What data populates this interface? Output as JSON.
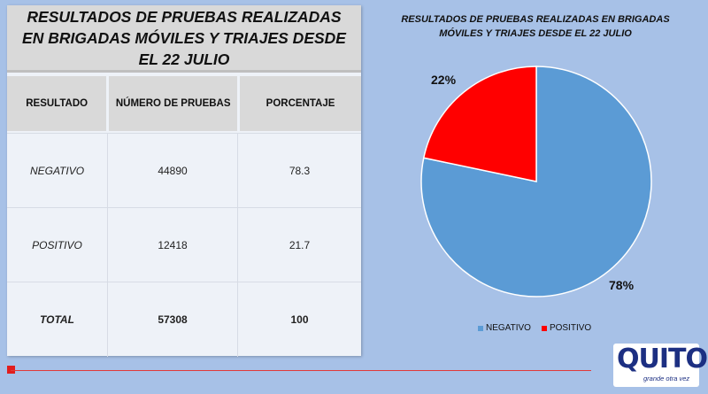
{
  "table": {
    "title": "RESULTADOS DE PRUEBAS REALIZADAS EN BRIGADAS MÓVILES Y TRIAJES DESDE EL 22 JULIO",
    "headers": [
      "RESULTADO",
      "NÚMERO DE PRUEBAS",
      "PORCENTAJE"
    ],
    "rows": [
      {
        "resultado": "NEGATIVO",
        "pruebas": "44890",
        "porcentaje": "78.3"
      },
      {
        "resultado": "POSITIVO",
        "pruebas": "12418",
        "porcentaje": "21.7"
      },
      {
        "resultado": "TOTAL",
        "pruebas": "57308",
        "porcentaje": "100"
      }
    ]
  },
  "chart_data": {
    "type": "pie",
    "title": "RESULTADOS DE PRUEBAS REALIZADAS EN BRIGADAS MÓVILES Y TRIAJES DESDE EL 22 JULIO",
    "categories": [
      "NEGATIVO",
      "POSITIVO"
    ],
    "values": [
      78.3,
      21.7
    ],
    "data_labels": [
      "78%",
      "22%"
    ],
    "colors": [
      "#5b9bd5",
      "#ff0000"
    ],
    "legend": "bottom"
  },
  "logo": {
    "text": "QUITO",
    "tagline": "grande otra vez"
  },
  "colors": {
    "background": "#a7c1e7",
    "accent_red": "#e11d1d",
    "logo_blue": "#1c2f82"
  }
}
